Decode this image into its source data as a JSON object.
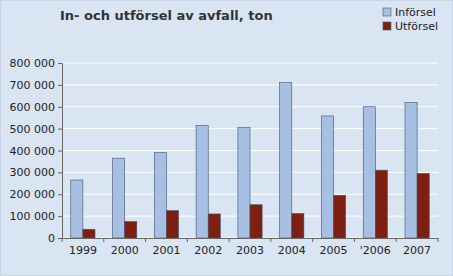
{
  "chart_data": {
    "type": "bar",
    "title": "In- och utförsel av avfall, ton",
    "categories": [
      "1999",
      "2000",
      "2001",
      "2002",
      "2003",
      "2004",
      "2005",
      "'2006",
      "2007"
    ],
    "series": [
      {
        "name": "Införsel",
        "color": "#a6bfe2",
        "values": [
          265000,
          365000,
          390000,
          515000,
          505000,
          710000,
          558000,
          600000,
          620000
        ]
      },
      {
        "name": "Utförsel",
        "color": "#7e1f12",
        "values": [
          40000,
          75000,
          125000,
          110000,
          152000,
          112000,
          195000,
          310000,
          295000
        ]
      }
    ],
    "ylim": [
      0,
      800000
    ],
    "yticks": [
      0,
      {
        "value": 100000,
        "label": "100 000"
      },
      {
        "value": 200000,
        "label": "200 000"
      },
      {
        "value": 300000,
        "label": "300 000"
      },
      {
        "value": 400000,
        "label": "400 000"
      },
      {
        "value": 500000,
        "label": "500 000"
      },
      {
        "value": 600000,
        "label": "600 000"
      },
      {
        "value": 700000,
        "label": "700 000"
      },
      {
        "value": 800000,
        "label": "800 000"
      }
    ],
    "grid": true,
    "legend": "top-right"
  }
}
